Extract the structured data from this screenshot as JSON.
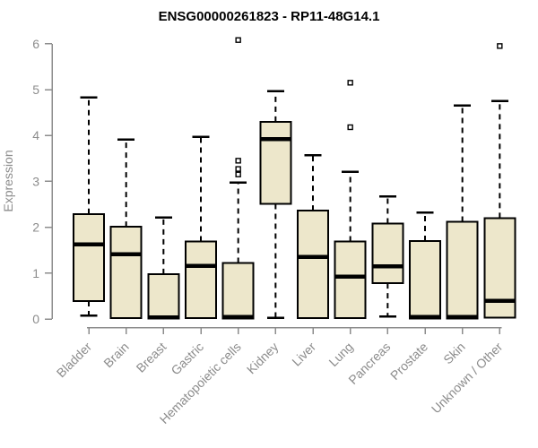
{
  "style": {
    "background": "#FFFFFF",
    "box_fill": "#EDE7CB",
    "box_stroke": "#000000",
    "median_color": "#000000",
    "whisker_color": "#000000",
    "outlier_fill": "#FFFFFF",
    "outlier_stroke": "#000000",
    "axis_color": "#8C8C8C",
    "label_color": "#8C8C8C",
    "title_color": "#000000"
  },
  "chart_data": {
    "type": "boxplot",
    "title": "ENSG00000261823 - RP11-48G14.1",
    "ylabel": "Expression",
    "xlabel": "",
    "ylim": [
      0,
      6.2
    ],
    "yticks": [
      0,
      1,
      2,
      3,
      4,
      5,
      6
    ],
    "grid": false,
    "legend": "none",
    "categories": [
      "Bladder",
      "Brain",
      "Breast",
      "Gastric",
      "Hematopoietic cells",
      "Kidney",
      "Liver",
      "Lung",
      "Pancreas",
      "Prostate",
      "Skin",
      "Unknown / Other"
    ],
    "series": [
      {
        "name": "Bladder",
        "low": 0.07,
        "q1": 0.39,
        "median": 1.63,
        "q3": 2.29,
        "high": 4.83,
        "outliers": []
      },
      {
        "name": "Brain",
        "low": 0.02,
        "q1": 0.02,
        "median": 1.41,
        "q3": 2.01,
        "high": 3.91,
        "outliers": []
      },
      {
        "name": "Breast",
        "low": 0.01,
        "q1": 0.01,
        "median": 0.03,
        "q3": 0.98,
        "high": 2.21,
        "outliers": []
      },
      {
        "name": "Gastric",
        "low": 0.02,
        "q1": 0.02,
        "median": 1.16,
        "q3": 1.69,
        "high": 3.97,
        "outliers": []
      },
      {
        "name": "Hematopoietic cells",
        "low": 0.01,
        "q1": 0.01,
        "median": 0.04,
        "q3": 1.22,
        "high": 2.97,
        "outliers": [
          3.15,
          3.27,
          3.45,
          6.08
        ]
      },
      {
        "name": "Kidney",
        "low": 0.02,
        "q1": 2.51,
        "median": 3.92,
        "q3": 4.3,
        "high": 4.97,
        "outliers": []
      },
      {
        "name": "Liver",
        "low": 0.02,
        "q1": 0.02,
        "median": 1.35,
        "q3": 2.36,
        "high": 3.57,
        "outliers": []
      },
      {
        "name": "Lung",
        "low": 0.02,
        "q1": 0.02,
        "median": 0.92,
        "q3": 1.69,
        "high": 3.21,
        "outliers": [
          4.18,
          5.15
        ]
      },
      {
        "name": "Pancreas",
        "low": 0.05,
        "q1": 0.78,
        "median": 1.15,
        "q3": 2.08,
        "high": 2.67,
        "outliers": []
      },
      {
        "name": "Prostate",
        "low": 0.01,
        "q1": 0.01,
        "median": 0.04,
        "q3": 1.7,
        "high": 2.32,
        "outliers": []
      },
      {
        "name": "Skin",
        "low": 0.01,
        "q1": 0.01,
        "median": 0.04,
        "q3": 2.12,
        "high": 4.65,
        "outliers": []
      },
      {
        "name": "Unknown / Other",
        "low": 0.03,
        "q1": 0.03,
        "median": 0.4,
        "q3": 2.2,
        "high": 4.75,
        "outliers": [
          5.95
        ]
      }
    ]
  }
}
